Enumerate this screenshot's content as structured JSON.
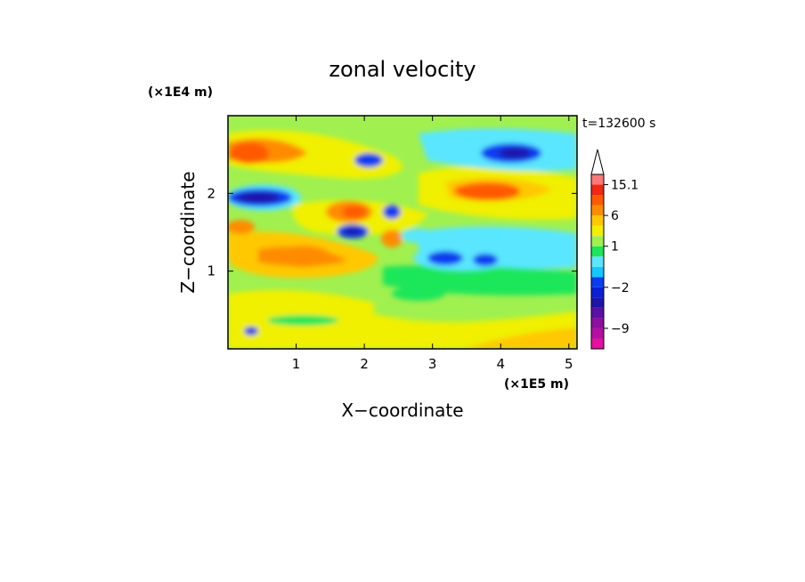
{
  "chart_data": {
    "type": "heatmap",
    "title": "zonal velocity",
    "xlabel": "X−coordinate",
    "ylabel": "Z−coordinate",
    "x_unit_label": "(×1E5 m)",
    "y_unit_label": "(×1E4 m)",
    "time_label": "t=132600 s",
    "x_ticks": [
      "1",
      "2",
      "3",
      "4",
      "5"
    ],
    "y_ticks": [
      "1",
      "2"
    ],
    "xlim": [
      0,
      5.12
    ],
    "ylim": [
      0,
      3
    ],
    "colorbar": {
      "labels": [
        "15.1",
        "6",
        "1",
        "−2",
        "−9"
      ],
      "label_levels": [
        15.1,
        6,
        1,
        -2,
        -9
      ],
      "levels": [
        -15,
        -12,
        -9,
        -6,
        -4,
        -3,
        -2,
        -1,
        0,
        0.5,
        1,
        2,
        4,
        6,
        9,
        12,
        15.1
      ],
      "colors": [
        "#e60fa0",
        "#b40fa0",
        "#8c0fa0",
        "#5a0fa5",
        "#1e14aa",
        "#0a1ed2",
        "#0a3cf0",
        "#14c8ff",
        "#5ae6ff",
        "#1ee65a",
        "#a0f050",
        "#f0f000",
        "#ffc800",
        "#ff8c00",
        "#ff5a00",
        "#f02814",
        "#ff7878",
        "#ffc8c8"
      ]
    },
    "features": [
      {
        "x": 1.05,
        "z": 2.55,
        "value": 6
      },
      {
        "x": 1.55,
        "z": 2.35,
        "value": -6
      },
      {
        "x": 0.5,
        "z": 1.95,
        "value": -6
      },
      {
        "x": 2.6,
        "z": 1.55,
        "value": -5
      },
      {
        "x": 2.05,
        "z": 1.75,
        "value": 6
      },
      {
        "x": 1.9,
        "z": 1.55,
        "value": -8
      },
      {
        "x": 4.15,
        "z": 2.5,
        "value": -6
      },
      {
        "x": 4.1,
        "z": 2.0,
        "value": 6
      },
      {
        "x": 3.3,
        "z": 1.2,
        "value": -5
      },
      {
        "x": 0.9,
        "z": 1.2,
        "value": 6
      },
      {
        "x": 0.25,
        "z": 2.55,
        "value": 6
      },
      {
        "x": 3.2,
        "z": 2.4,
        "value": 4
      }
    ]
  }
}
